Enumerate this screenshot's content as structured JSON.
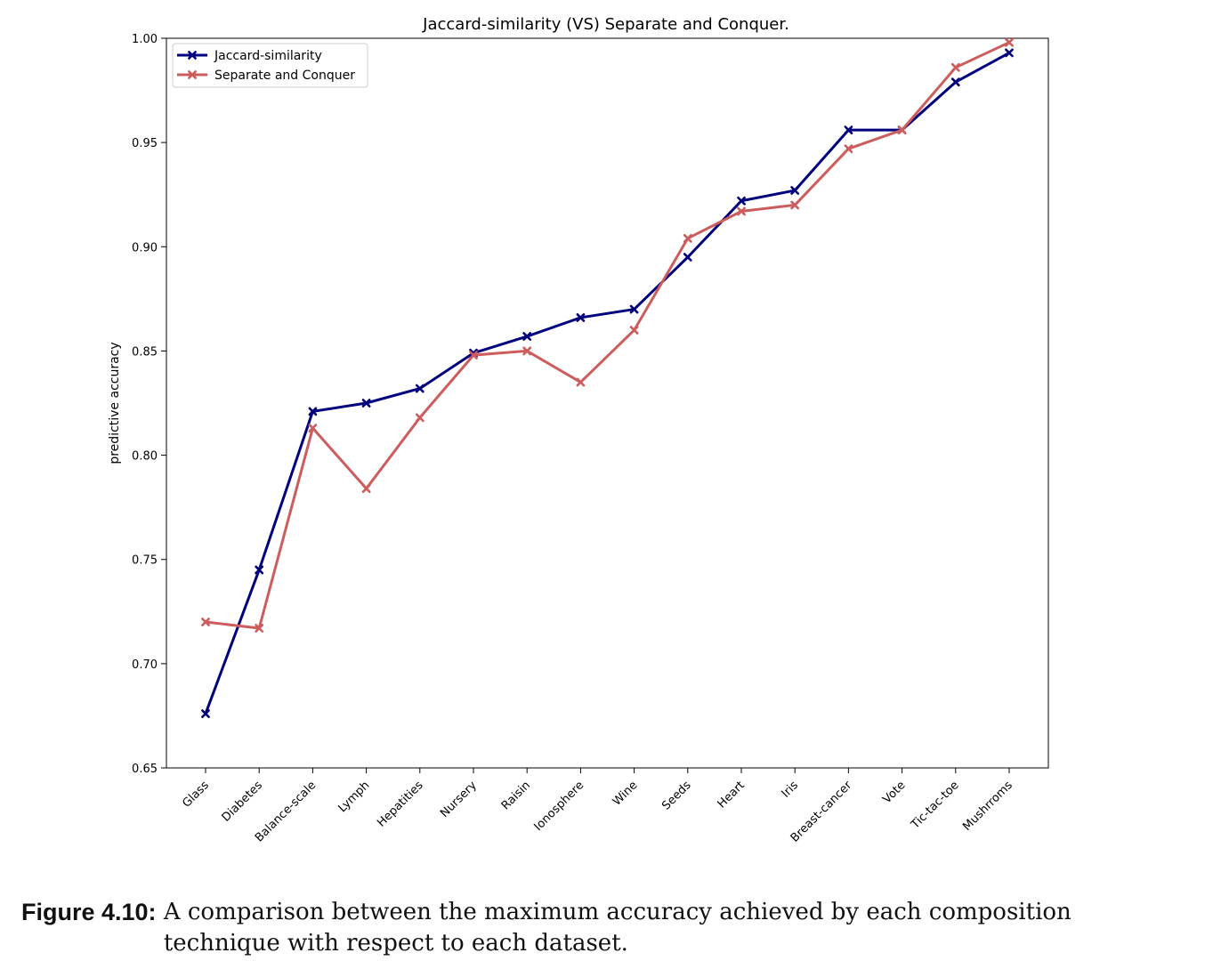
{
  "chart_data": {
    "type": "line",
    "title": "Jaccard-similarity (VS) Separate and Conquer.",
    "xlabel": "",
    "ylabel": "predictive accuracy",
    "ylim": [
      0.65,
      1.0
    ],
    "yticks": [
      "0.65",
      "0.70",
      "0.75",
      "0.80",
      "0.85",
      "0.90",
      "0.95",
      "1.00"
    ],
    "grid": false,
    "legend_position": "top-left",
    "categories": [
      "Glass",
      "Diabetes",
      "Balance-scale",
      "Lymph",
      "Hepatities",
      "Nursery",
      "Raisin",
      "Ionosphere",
      "Wine",
      "Seeds",
      "Heart",
      "Iris",
      "Breast-cancer",
      "Vote",
      "Tic-tac-toe",
      "Mushrroms"
    ],
    "series": [
      {
        "name": "Jaccard-similarity",
        "color": "#00007f",
        "values": [
          0.676,
          0.745,
          0.821,
          0.825,
          0.832,
          0.849,
          0.857,
          0.866,
          0.87,
          0.895,
          0.922,
          0.927,
          0.956,
          0.956,
          0.979,
          0.993
        ]
      },
      {
        "name": "Separate and Conquer",
        "color": "#cd5c5c",
        "values": [
          0.72,
          0.717,
          0.813,
          0.784,
          0.818,
          0.848,
          0.85,
          0.835,
          0.86,
          0.904,
          0.917,
          0.92,
          0.947,
          0.956,
          0.986,
          0.998
        ]
      }
    ]
  },
  "caption": {
    "label": "Figure 4.10:",
    "text": "A comparison between the maximum accuracy achieved by each composition technique with respect to each dataset."
  }
}
